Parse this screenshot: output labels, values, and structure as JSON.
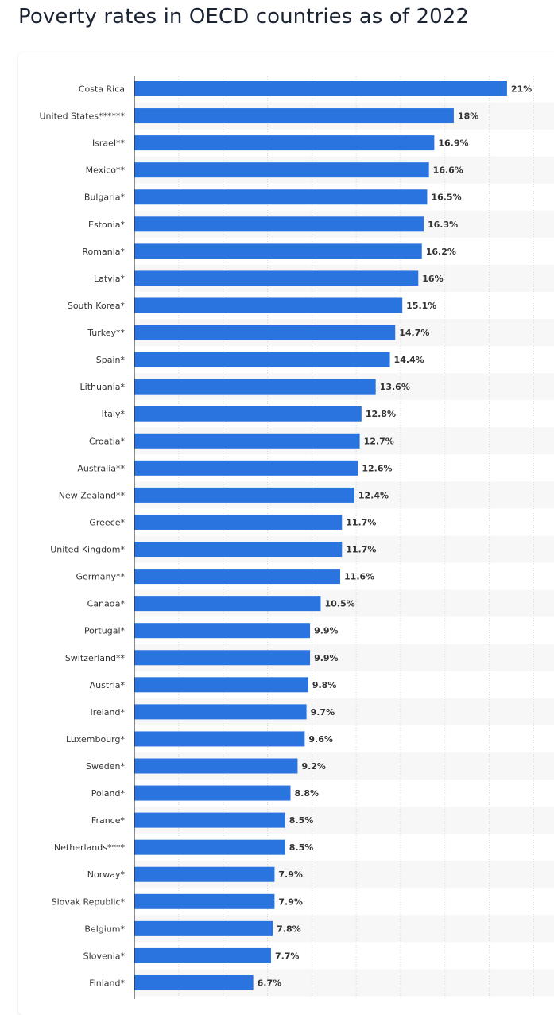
{
  "page": {
    "title": "Poverty rates in OECD countries as of 2022"
  },
  "colors": {
    "bar": "#2a74e0",
    "band": "#f7f7f8",
    "grid": "#d8d8d8",
    "axis": "#1a1a1a"
  },
  "chart_data": {
    "type": "bar",
    "orientation": "horizontal",
    "title": "",
    "xlabel": "",
    "ylabel": "",
    "xlim": [
      0,
      23.5
    ],
    "grid": true,
    "value_suffix": "%",
    "categories": [
      "Costa Rica",
      "United States******",
      "Israel**",
      "Mexico**",
      "Bulgaria*",
      "Estonia*",
      "Romania*",
      "Latvia*",
      "South Korea*",
      "Turkey**",
      "Spain*",
      "Lithuania*",
      "Italy*",
      "Croatia*",
      "Australia**",
      "New Zealand**",
      "Greece*",
      "United Kingdom*",
      "Germany**",
      "Canada*",
      "Portugal*",
      "Switzerland**",
      "Austria*",
      "Ireland*",
      "Luxembourg*",
      "Sweden*",
      "Poland*",
      "France*",
      "Netherlands****",
      "Norway*",
      "Slovak Republic*",
      "Belgium*",
      "Slovenia*",
      "Finland*"
    ],
    "values": [
      21,
      18,
      16.9,
      16.6,
      16.5,
      16.3,
      16.2,
      16,
      15.1,
      14.7,
      14.4,
      13.6,
      12.8,
      12.7,
      12.6,
      12.4,
      11.7,
      11.7,
      11.6,
      10.5,
      9.9,
      9.9,
      9.8,
      9.7,
      9.6,
      9.2,
      8.8,
      8.5,
      8.5,
      7.9,
      7.9,
      7.8,
      7.7,
      6.7
    ],
    "value_labels": [
      "21%",
      "18%",
      "16.9%",
      "16.6%",
      "16.5%",
      "16.3%",
      "16.2%",
      "16%",
      "15.1%",
      "14.7%",
      "14.4%",
      "13.6%",
      "12.8%",
      "12.7%",
      "12.6%",
      "12.4%",
      "11.7%",
      "11.7%",
      "11.6%",
      "10.5%",
      "9.9%",
      "9.9%",
      "9.8%",
      "9.7%",
      "9.6%",
      "9.2%",
      "8.8%",
      "8.5%",
      "8.5%",
      "7.9%",
      "7.9%",
      "7.8%",
      "7.7%",
      "6.7%"
    ]
  }
}
